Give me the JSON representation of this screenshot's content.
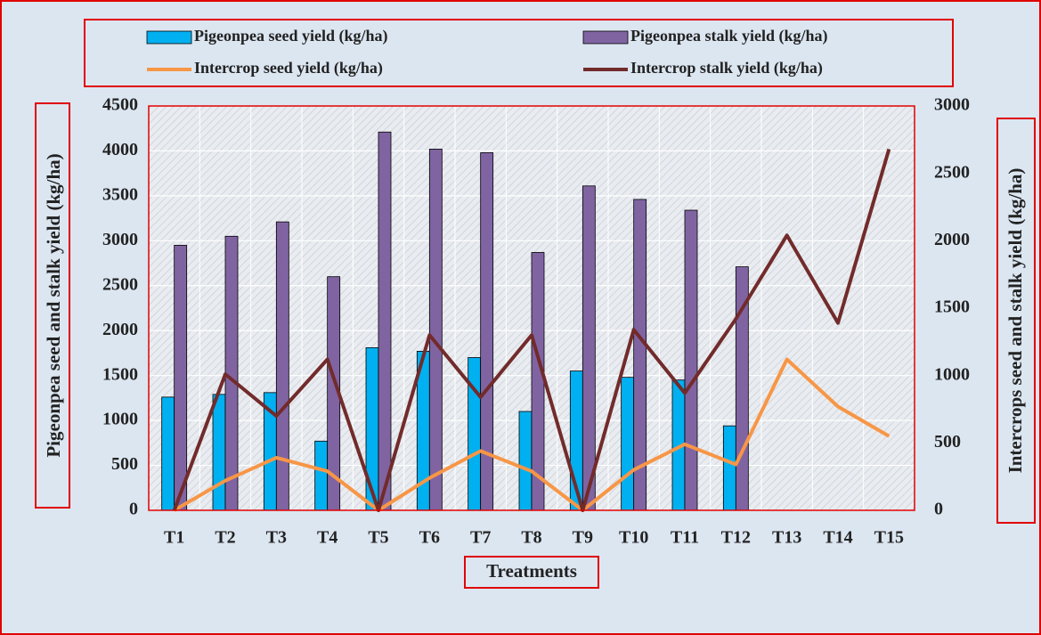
{
  "chart_data": {
    "type": "bar",
    "categories": [
      "T1",
      "T2",
      "T3",
      "T4",
      "T5",
      "T6",
      "T7",
      "T8",
      "T9",
      "T10",
      "T11",
      "T12",
      "T13",
      "T14",
      "T15"
    ],
    "x_label": "Treatments",
    "y_label": "Pigeonpea seed and stalk yield (kg/ha)",
    "y2_label": "Intercrops seed and stalk yield (kg/ha)",
    "ylim": [
      0,
      4500
    ],
    "yticks": [
      0,
      500,
      1000,
      1500,
      2000,
      2500,
      3000,
      3500,
      4000,
      4500
    ],
    "y2lim": [
      0,
      3000
    ],
    "y2ticks": [
      0,
      500,
      1000,
      1500,
      2000,
      2500,
      3000
    ],
    "grid": true,
    "legend": "top",
    "series": [
      {
        "name": "Pigeonpea seed yield (kg/ha)",
        "type": "bar",
        "color": "#00b0f0",
        "values": [
          1260,
          1290,
          1310,
          770,
          1810,
          1770,
          1700,
          1100,
          1550,
          1480,
          1450,
          940,
          null,
          null,
          null
        ]
      },
      {
        "name": "Pigeonpea stalk yield (kg/ha)",
        "type": "bar",
        "color": "#8064a2",
        "values": [
          2950,
          3050,
          3210,
          2600,
          4210,
          4020,
          3980,
          2870,
          3610,
          3460,
          3340,
          2710,
          null,
          null,
          null
        ]
      },
      {
        "name": "Intercrop seed yield (kg/ha)",
        "type": "line",
        "axis": "y2",
        "color": "#f79646",
        "values": [
          0,
          220,
          390,
          290,
          0,
          240,
          440,
          290,
          0,
          300,
          490,
          340,
          1120,
          770,
          550
        ]
      },
      {
        "name": "Intercrop stalk yield (kg/ha)",
        "type": "line",
        "axis": "y2",
        "color": "#722b2b",
        "values": [
          0,
          1010,
          700,
          1120,
          0,
          1300,
          840,
          1300,
          0,
          1340,
          870,
          1420,
          2040,
          1390,
          2680
        ]
      }
    ]
  }
}
